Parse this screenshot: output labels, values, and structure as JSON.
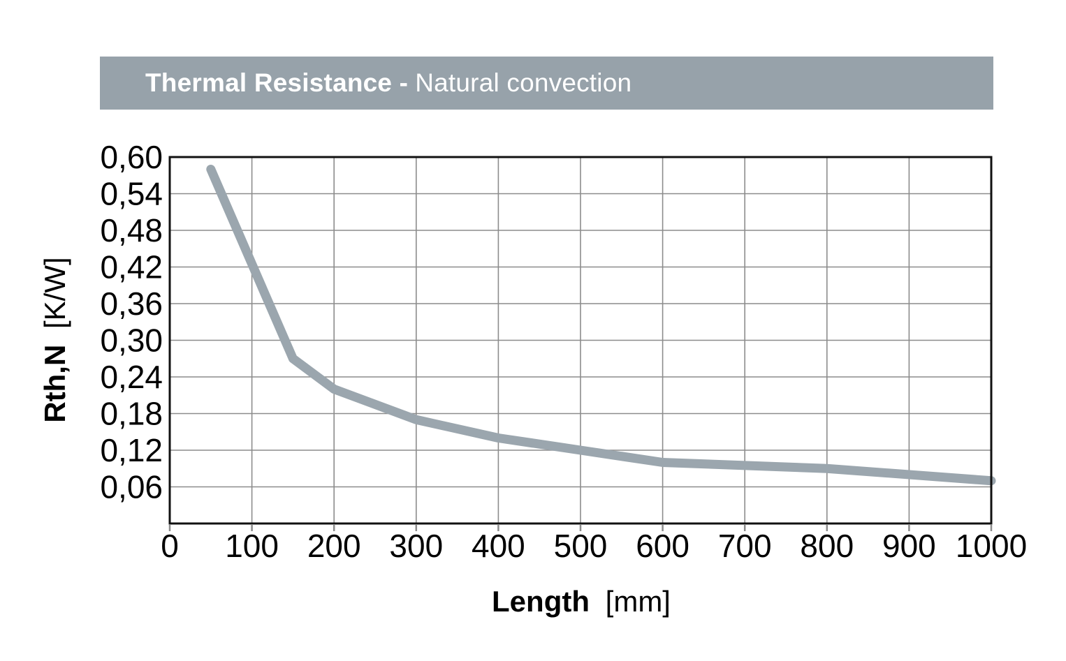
{
  "header": {
    "title_bold": "Thermal Resistance -",
    "title_regular": "Natural convection",
    "bg_color": "#97A2AA",
    "text_color": "#FFFFFF"
  },
  "chart_data": {
    "type": "line",
    "title": "Thermal Resistance - Natural convection",
    "xlabel": "Length [mm]",
    "xlabel_bold": "Length",
    "xlabel_unit": "[mm]",
    "ylabel": "Rth,N [K/W]",
    "ylabel_bold": "Rth,N",
    "ylabel_unit": "[K/W]",
    "xlim": [
      0,
      1000
    ],
    "ylim": [
      0,
      0.6
    ],
    "grid": true,
    "legend": "none",
    "x_ticks": [
      0,
      100,
      200,
      300,
      400,
      500,
      600,
      700,
      800,
      900,
      1000
    ],
    "x_tick_labels": [
      "0",
      "100",
      "200",
      "300",
      "400",
      "500",
      "600",
      "700",
      "800",
      "900",
      "1000"
    ],
    "y_ticks": [
      0.06,
      0.12,
      0.18,
      0.24,
      0.3,
      0.36,
      0.42,
      0.48,
      0.54,
      0.6
    ],
    "y_tick_labels": [
      "0,06",
      "0,12",
      "0,18",
      "0,24",
      "0,30",
      "0,36",
      "0,42",
      "0,48",
      "0,54",
      "0,60"
    ],
    "series": [
      {
        "name": "Rth,N",
        "x": [
          50,
          150,
          200,
          300,
          400,
          500,
          600,
          800,
          1000
        ],
        "y": [
          0.58,
          0.27,
          0.22,
          0.17,
          0.14,
          0.12,
          0.1,
          0.09,
          0.07
        ]
      }
    ],
    "line_color": "#9BA6AE",
    "line_width": 13,
    "grid_color": "#8C8C8C",
    "axis_color": "#111111",
    "tick_label_color": "#000000",
    "tick_font_size": 46
  }
}
